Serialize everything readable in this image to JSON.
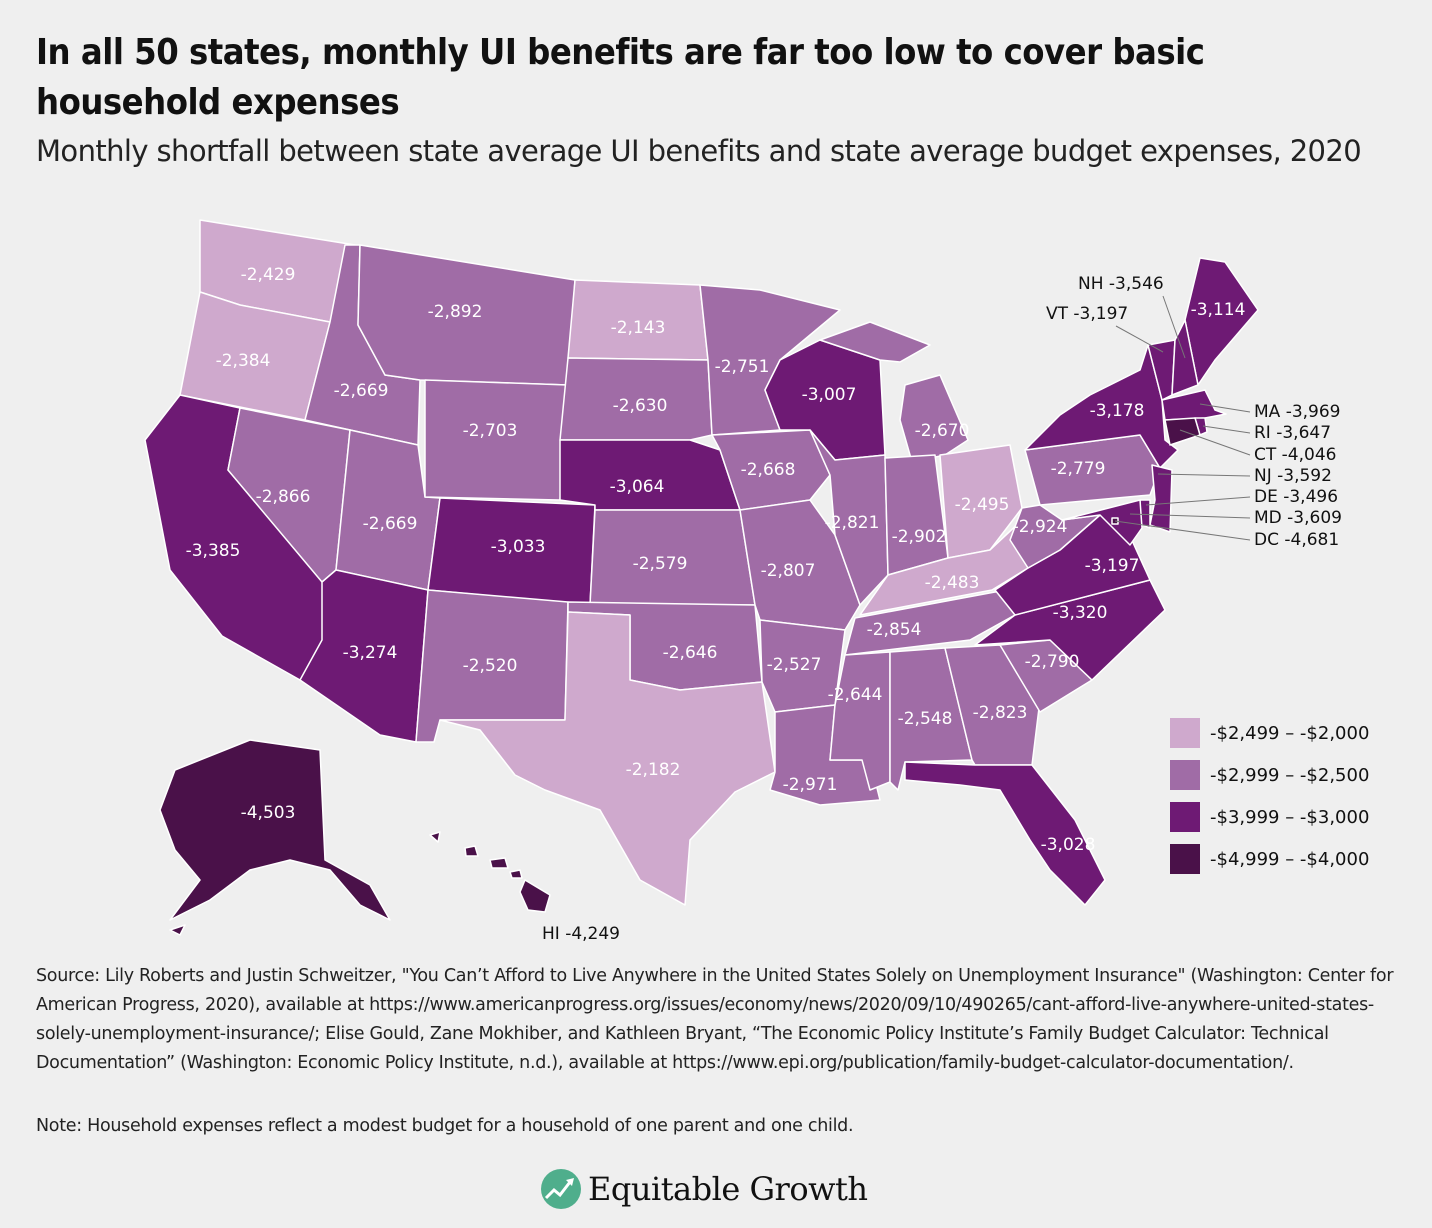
{
  "header": {
    "title": "In all 50 states, monthly UI benefits are far too low to cover basic household expenses",
    "subtitle": "Monthly shortfall between state average UI benefits and state average budget expenses, 2020"
  },
  "chart_data": {
    "type": "choropleth",
    "legend_placement": "bottom-right",
    "bins": [
      {
        "label": "-$2,499 – -$2,000",
        "min": -2499,
        "max": -2000,
        "color": "#cfa9cd"
      },
      {
        "label": "-$2,999 – -$2,500",
        "min": -2999,
        "max": -2500,
        "color": "#a06ca6"
      },
      {
        "label": "-$3,999 – -$3,000",
        "min": -3999,
        "max": -3000,
        "color": "#6e1a74"
      },
      {
        "label": "-$4,999 – -$4,000",
        "min": -4999,
        "max": -4000,
        "color": "#4a1149"
      }
    ],
    "states": [
      {
        "id": "WA",
        "value": -2429,
        "label": "-2,429"
      },
      {
        "id": "OR",
        "value": -2384,
        "label": "-2,384"
      },
      {
        "id": "CA",
        "value": -3385,
        "label": "-3,385"
      },
      {
        "id": "ID",
        "value": -2669,
        "label": "-2,669"
      },
      {
        "id": "NV",
        "value": -2866,
        "label": "-2,866"
      },
      {
        "id": "UT",
        "value": -2669,
        "label": "-2,669"
      },
      {
        "id": "AZ",
        "value": -3274,
        "label": "-3,274"
      },
      {
        "id": "MT",
        "value": -2892,
        "label": "-2,892"
      },
      {
        "id": "WY",
        "value": -2703,
        "label": "-2,703"
      },
      {
        "id": "CO",
        "value": -3033,
        "label": "-3,033"
      },
      {
        "id": "NM",
        "value": -2520,
        "label": "-2,520"
      },
      {
        "id": "ND",
        "value": -2143,
        "label": "-2,143"
      },
      {
        "id": "SD",
        "value": -2630,
        "label": "-2,630"
      },
      {
        "id": "NE",
        "value": -3064,
        "label": "-3,064"
      },
      {
        "id": "KS",
        "value": -2579,
        "label": "-2,579"
      },
      {
        "id": "OK",
        "value": -2646,
        "label": "-2,646"
      },
      {
        "id": "TX",
        "value": -2182,
        "label": "-2,182"
      },
      {
        "id": "MN",
        "value": -2751,
        "label": "-2,751"
      },
      {
        "id": "IA",
        "value": -2668,
        "label": "-2,668"
      },
      {
        "id": "MO",
        "value": -2807,
        "label": "-2,807"
      },
      {
        "id": "AR",
        "value": -2527,
        "label": "-2,527"
      },
      {
        "id": "LA",
        "value": -2971,
        "label": "-2,971"
      },
      {
        "id": "WI",
        "value": -3007,
        "label": "-3,007"
      },
      {
        "id": "IL",
        "value": -2821,
        "label": "-2,821"
      },
      {
        "id": "MI",
        "value": -2670,
        "label": "-2,670"
      },
      {
        "id": "IN",
        "value": -2902,
        "label": "-2,902"
      },
      {
        "id": "OH",
        "value": -2495,
        "label": "-2,495"
      },
      {
        "id": "KY",
        "value": -2483,
        "label": "-2,483"
      },
      {
        "id": "TN",
        "value": -2854,
        "label": "-2,854"
      },
      {
        "id": "MS",
        "value": -2644,
        "label": "-2,644"
      },
      {
        "id": "AL",
        "value": -2548,
        "label": "-2,548"
      },
      {
        "id": "GA",
        "value": -2823,
        "label": "-2,823"
      },
      {
        "id": "FL",
        "value": -3028,
        "label": "-3,028"
      },
      {
        "id": "SC",
        "value": -2790,
        "label": "-2,790"
      },
      {
        "id": "NC",
        "value": -3320,
        "label": "-3,320"
      },
      {
        "id": "VA",
        "value": -3197,
        "label": "-3,197"
      },
      {
        "id": "WV",
        "value": -2924,
        "label": "-2,924"
      },
      {
        "id": "PA",
        "value": -2779,
        "label": "-2,779"
      },
      {
        "id": "NY",
        "value": -3178,
        "label": "-3,178"
      },
      {
        "id": "ME",
        "value": -3114,
        "label": "-3,114"
      },
      {
        "id": "AK",
        "value": -4503,
        "label": "-4,503"
      },
      {
        "id": "VT",
        "value": -3197,
        "label": "VT -3,197"
      },
      {
        "id": "NH",
        "value": -3546,
        "label": "NH -3,546"
      },
      {
        "id": "MA",
        "value": -3969,
        "label": "MA -3,969"
      },
      {
        "id": "RI",
        "value": -3647,
        "label": "RI -3,647"
      },
      {
        "id": "CT",
        "value": -4046,
        "label": "CT -4,046"
      },
      {
        "id": "NJ",
        "value": -3592,
        "label": "NJ -3,592"
      },
      {
        "id": "DE",
        "value": -3496,
        "label": "DE -3,496"
      },
      {
        "id": "MD",
        "value": -3609,
        "label": "MD -3,609"
      },
      {
        "id": "DC",
        "value": -4681,
        "label": "DC -4,681"
      },
      {
        "id": "HI",
        "value": -4249,
        "label": "HI -4,249"
      }
    ]
  },
  "footer": {
    "source": "Source: Lily Roberts and Justin Schweitzer, \"You Can’t Afford to Live Anywhere in the United States Solely on Unemployment Insurance\" (Washington: Center for American Progress, 2020), available at https://www.americanprogress.org/issues/economy/news/2020/09/10/490265/cant-afford-live-anywhere-united-states-solely-unemployment-insurance/; Elise Gould, Zane Mokhiber, and Kathleen Bryant, “The Economic Policy Institute’s Family Budget Calculator: Technical Documentation” (Washington: Economic Policy Institute, n.d.), available at https://www.epi.org/publication/family-budget-calculator-documentation/.",
    "note": "Note: Household expenses reflect a modest budget for a household of one parent and one child.",
    "logo": "Equitable Growth"
  }
}
